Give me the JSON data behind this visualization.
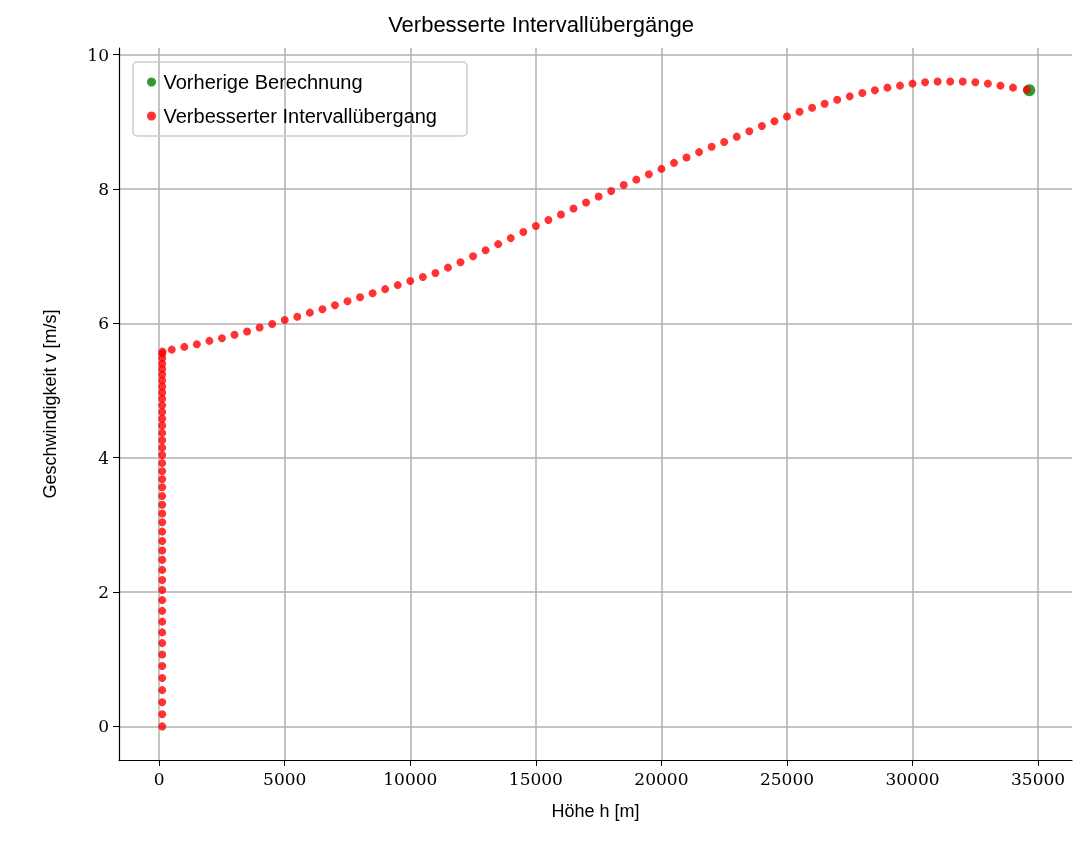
{
  "chart_data": {
    "type": "scatter",
    "title": "Verbesserte Intervallübergänge",
    "xlabel": "Höhe h [m]",
    "ylabel": "Geschwindigkeit v [m/s]",
    "xlim": [
      -1600,
      36350
    ],
    "xticks": [
      0,
      5000,
      10000,
      15000,
      20000,
      25000,
      30000,
      35000
    ],
    "ylim": [
      -0.5,
      10.1
    ],
    "yticks": [
      0,
      2,
      4,
      6,
      8,
      10
    ],
    "grid": true,
    "legend": "top left",
    "marker": "circle",
    "series": [
      {
        "name": "Vorherige Berechnung",
        "color": "#008000",
        "x": [
          34650
        ],
        "values": [
          9.47
        ]
      },
      {
        "name": "Verbesserter Intervallübergang",
        "color": "#ff0000",
        "x": [
          120,
          120,
          120,
          120,
          120,
          120,
          120,
          120,
          120,
          120,
          120,
          120,
          120,
          120,
          120,
          120,
          120,
          120,
          120,
          120,
          120,
          120,
          120,
          120,
          120,
          120,
          120,
          120,
          120,
          120,
          120,
          120,
          120,
          120,
          120,
          120,
          120,
          120,
          120,
          120,
          120,
          120,
          120,
          120,
          130,
          500,
          1000,
          1500,
          2000,
          2500,
          3000,
          3500,
          4000,
          4500,
          5000,
          5500,
          6000,
          6500,
          7000,
          7500,
          8000,
          8500,
          9000,
          9500,
          10000,
          10500,
          11000,
          11500,
          12000,
          12500,
          13000,
          13500,
          14000,
          14500,
          15000,
          15500,
          16000,
          16500,
          17000,
          17500,
          18000,
          18500,
          19000,
          19500,
          20000,
          20500,
          21000,
          21500,
          22000,
          22500,
          23000,
          23500,
          24000,
          24500,
          25000,
          25500,
          26000,
          26500,
          27000,
          27500,
          28000,
          28500,
          29000,
          29500,
          30000,
          30500,
          31000,
          31500,
          32000,
          32500,
          33000,
          33500,
          34000,
          34550
        ],
        "values": [
          0,
          0.18,
          0.36,
          0.54,
          0.72,
          0.9,
          1.07,
          1.24,
          1.4,
          1.56,
          1.72,
          1.88,
          2.03,
          2.18,
          2.33,
          2.48,
          2.62,
          2.76,
          2.9,
          3.04,
          3.17,
          3.3,
          3.43,
          3.56,
          3.68,
          3.8,
          3.92,
          4.04,
          4.15,
          4.26,
          4.37,
          4.48,
          4.58,
          4.68,
          4.78,
          4.88,
          4.97,
          5.06,
          5.15,
          5.24,
          5.32,
          5.4,
          5.48,
          5.55,
          5.58,
          5.61,
          5.65,
          5.69,
          5.74,
          5.78,
          5.83,
          5.88,
          5.94,
          5.99,
          6.05,
          6.1,
          6.16,
          6.21,
          6.27,
          6.33,
          6.39,
          6.45,
          6.51,
          6.57,
          6.63,
          6.69,
          6.75,
          6.83,
          6.91,
          7.0,
          7.09,
          7.18,
          7.27,
          7.36,
          7.45,
          7.54,
          7.62,
          7.71,
          7.8,
          7.89,
          7.97,
          8.06,
          8.14,
          8.22,
          8.3,
          8.39,
          8.47,
          8.55,
          8.63,
          8.7,
          8.78,
          8.86,
          8.94,
          9.01,
          9.08,
          9.15,
          9.21,
          9.27,
          9.33,
          9.38,
          9.43,
          9.47,
          9.51,
          9.54,
          9.57,
          9.59,
          9.6,
          9.6,
          9.6,
          9.59,
          9.57,
          9.54,
          9.51,
          9.48
        ]
      }
    ]
  }
}
